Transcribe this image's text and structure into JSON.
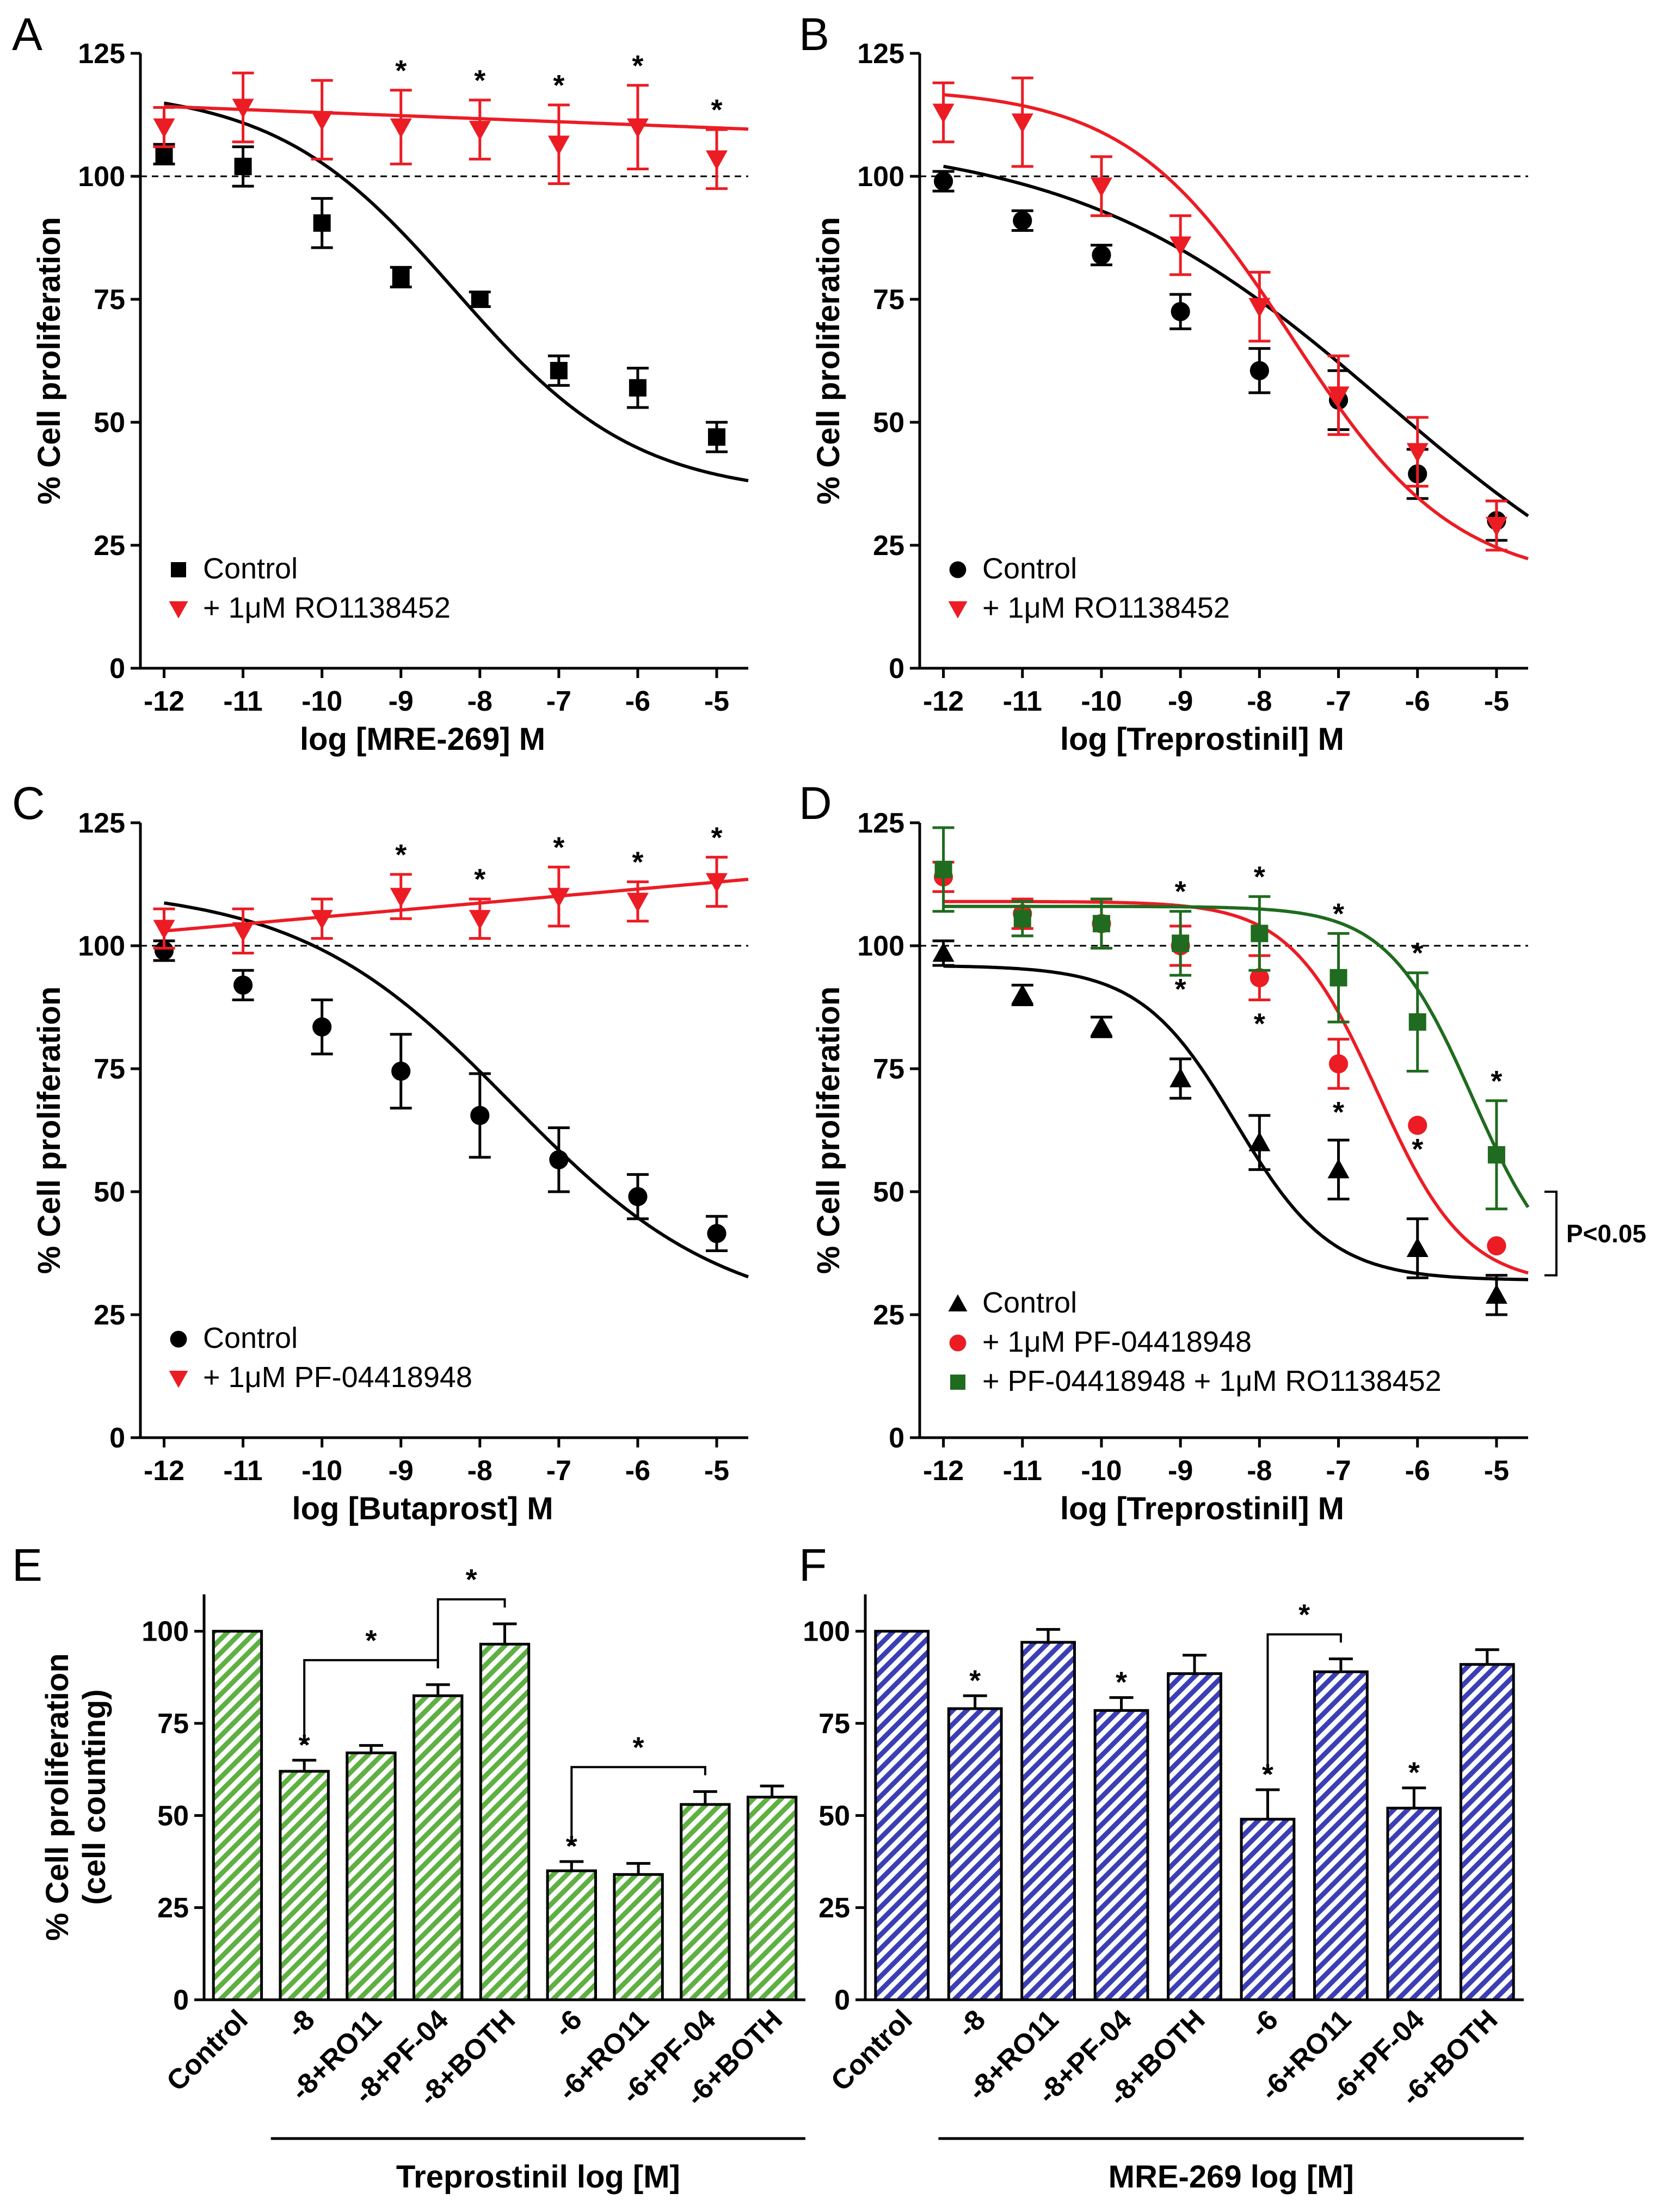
{
  "figure": {
    "description_free": true
  },
  "colors": {
    "black": "#000000",
    "red": "#ec1c24",
    "green": "#1f6b1f",
    "bar_green": "#5fb042",
    "bar_blue": "#3b3fb5"
  },
  "chart_data": [
    {
      "panel": "A",
      "type": "line",
      "xlabel": "log [MRE-269] M",
      "ylabel": "% Cell proliferation",
      "ylim": [
        0,
        125
      ],
      "yticks": [
        0,
        25,
        50,
        75,
        100,
        125
      ],
      "xlim": [
        -12.3,
        -4.6
      ],
      "xticks": [
        -12,
        -11,
        -10,
        -9,
        -8,
        -7,
        -6,
        -5
      ],
      "reference_line": 100,
      "series": [
        {
          "name": "Control",
          "color": "#000000",
          "marker": "square",
          "x": [
            -12,
            -11,
            -10,
            -9,
            -8,
            -7,
            -6,
            -5
          ],
          "y": [
            104.5,
            102,
            90.5,
            79.5,
            75,
            60.5,
            57,
            47
          ],
          "err": [
            2,
            4,
            5,
            2,
            1.5,
            3,
            4,
            3
          ],
          "fit": {
            "top": 118,
            "bottom": 35,
            "logec50": -8.3,
            "hill": 0.38
          }
        },
        {
          "name": "+ 1μM RO1138452",
          "color": "#ec1c24",
          "marker": "triangle-down",
          "x": [
            -12,
            -11,
            -10,
            -9,
            -8,
            -7,
            -6,
            -5
          ],
          "y": [
            110,
            114,
            111.5,
            110,
            109.5,
            106.5,
            110,
            103.5
          ],
          "err": [
            4,
            7,
            8,
            7.5,
            6,
            8,
            8.5,
            6
          ],
          "fit": {
            "linear": [
              114.2,
              109.6
            ]
          },
          "stars": [
            -9,
            -8,
            -7,
            -6,
            -5
          ]
        }
      ],
      "legend": [
        "Control",
        "+ 1μM RO1138452"
      ]
    },
    {
      "panel": "B",
      "type": "line",
      "xlabel": "log [Treprostinil] M",
      "ylabel": "% Cell proliferation",
      "ylim": [
        0,
        125
      ],
      "yticks": [
        0,
        25,
        50,
        75,
        100,
        125
      ],
      "xlim": [
        -12.3,
        -4.6
      ],
      "xticks": [
        -12,
        -11,
        -10,
        -9,
        -8,
        -7,
        -6,
        -5
      ],
      "reference_line": 100,
      "series": [
        {
          "name": "Control",
          "color": "#000000",
          "marker": "circle",
          "x": [
            -12,
            -11,
            -10,
            -9,
            -8,
            -7,
            -6,
            -5
          ],
          "y": [
            99,
            91,
            84,
            72.5,
            60.5,
            54.5,
            39.5,
            30
          ],
          "err": [
            2,
            2,
            2,
            3.5,
            4.5,
            6,
            5,
            4
          ],
          "fit": {
            "top": 108,
            "bottom": 0,
            "logec50": -6.4,
            "hill": 0.22
          }
        },
        {
          "name": "+ 1μM RO1138452",
          "color": "#ec1c24",
          "marker": "triangle-down",
          "x": [
            -12,
            -11,
            -10,
            -9,
            -8,
            -7,
            -6,
            -5
          ],
          "y": [
            113,
            111,
            98,
            86,
            73.5,
            55.5,
            44,
            29
          ],
          "err": [
            6,
            9,
            6,
            6,
            7,
            8,
            7,
            5
          ],
          "fit": {
            "top": 118,
            "bottom": 17,
            "logec50": -7.6,
            "hill": 0.42
          }
        }
      ],
      "legend": [
        "Control",
        "+ 1μM RO1138452"
      ]
    },
    {
      "panel": "C",
      "type": "line",
      "xlabel": "log [Butaprost] M",
      "ylabel": "% Cell proliferation",
      "ylim": [
        0,
        125
      ],
      "yticks": [
        0,
        25,
        50,
        75,
        100,
        125
      ],
      "xlim": [
        -12.3,
        -4.6
      ],
      "xticks": [
        -12,
        -11,
        -10,
        -9,
        -8,
        -7,
        -6,
        -5
      ],
      "reference_line": 100,
      "series": [
        {
          "name": "Control",
          "color": "#000000",
          "marker": "circle",
          "x": [
            -12,
            -11,
            -10,
            -9,
            -8,
            -7,
            -6,
            -5
          ],
          "y": [
            99,
            92,
            83.5,
            74.5,
            65.5,
            56.5,
            49,
            41.5
          ],
          "err": [
            2,
            3,
            5.5,
            7.5,
            8.5,
            6.5,
            4.5,
            3.5
          ],
          "fit": {
            "top": 112,
            "bottom": 24,
            "logec50": -7.6,
            "hill": 0.32
          }
        },
        {
          "name": "+ 1μM PF-04418948",
          "color": "#ec1c24",
          "marker": "triangle-down",
          "x": [
            -12,
            -11,
            -10,
            -9,
            -8,
            -7,
            -6,
            -5
          ],
          "y": [
            103.5,
            103,
            105.5,
            110,
            105.5,
            110,
            109,
            113
          ],
          "err": [
            4,
            4.5,
            4,
            4.5,
            4,
            6,
            4,
            5
          ],
          "fit": {
            "linear": [
              103,
              113.5
            ]
          },
          "stars": [
            -9,
            -8,
            -7,
            -6,
            -5
          ]
        }
      ],
      "legend": [
        "Control",
        "+ 1μM PF-04418948"
      ]
    },
    {
      "panel": "D",
      "type": "line",
      "xlabel": "log [Treprostinil] M",
      "ylabel": "% Cell proliferation",
      "ylim": [
        0,
        125
      ],
      "yticks": [
        0,
        25,
        50,
        75,
        100,
        125
      ],
      "xlim": [
        -12.3,
        -4.6
      ],
      "xticks": [
        -12,
        -11,
        -10,
        -9,
        -8,
        -7,
        -6,
        -5
      ],
      "reference_line": 100,
      "annotation": "P<0.05",
      "series": [
        {
          "name": "Control",
          "color": "#000000",
          "marker": "triangle-up",
          "x": [
            -12,
            -11,
            -10,
            -9,
            -8,
            -7,
            -6,
            -5
          ],
          "y": [
            98.5,
            90,
            83.5,
            73,
            60,
            54.5,
            38.5,
            29
          ],
          "err": [
            2.5,
            2,
            2,
            4,
            5.5,
            6,
            6,
            4
          ],
          "fit": {
            "top": 96,
            "bottom": 32,
            "logec50": -8.3,
            "hill": 0.72
          }
        },
        {
          "name": "+ 1μM PF-04418948",
          "color": "#ec1c24",
          "marker": "circle",
          "x": [
            -12,
            -11,
            -10,
            -9,
            -8,
            -7,
            -6,
            -5
          ],
          "y": [
            114,
            106.5,
            104.5,
            100,
            93.5,
            76,
            63.5,
            39
          ],
          "err": [
            3,
            3,
            5,
            4,
            4.5,
            5,
            0,
            0
          ],
          "fit": {
            "top": 109,
            "bottom": 31,
            "logec50": -6.5,
            "hill": 0.78
          },
          "stars": [
            -9,
            -8,
            -7,
            -6
          ]
        },
        {
          "name": "+ PF-04418948 + 1μM RO1138452",
          "color": "#1f6b1f",
          "marker": "square",
          "x": [
            -12,
            -11,
            -10,
            -9,
            -8,
            -7,
            -6,
            -5
          ],
          "y": [
            115.5,
            105.5,
            104.5,
            100.5,
            102.5,
            93.5,
            84.5,
            57.5
          ],
          "err": [
            8.5,
            3.5,
            5,
            6.5,
            7.5,
            9,
            10,
            11
          ],
          "fit": {
            "top": 108,
            "bottom": 30,
            "logec50": -5.3,
            "hill": 0.8
          },
          "stars": [
            -9,
            -8,
            -7,
            -6,
            -5
          ]
        }
      ],
      "legend": [
        "Control",
        "+ 1μM PF-04418948",
        "+ PF-04418948 + 1μM RO1138452"
      ]
    },
    {
      "panel": "E",
      "type": "bar",
      "ylabel_lines": [
        "% Cell proliferation",
        "(cell counting)"
      ],
      "ylim": [
        0,
        110
      ],
      "yticks": [
        0,
        25,
        50,
        75,
        100
      ],
      "color": "#5fb042",
      "categories": [
        "Control",
        "-8",
        "-8+RO11",
        "-8+PF-04",
        "-8+BOTH",
        "-6",
        "-6+RO11",
        "-6+PF-04",
        "-6+BOTH"
      ],
      "values": [
        100,
        62,
        67,
        82.5,
        96.5,
        35,
        34,
        53,
        55
      ],
      "err": [
        0,
        3,
        2,
        3,
        5.5,
        2.5,
        3,
        3.5,
        3
      ],
      "stars": [
        1,
        5
      ],
      "brackets": [
        {
          "from": 1,
          "to": 3,
          "label": "*"
        },
        {
          "from": 3,
          "to": 4,
          "label": "*"
        },
        {
          "from": 5,
          "to": 7,
          "label": "*"
        }
      ],
      "group_label": "Treprostinil log [M]"
    },
    {
      "panel": "F",
      "type": "bar",
      "ylim": [
        0,
        110
      ],
      "yticks": [
        0,
        25,
        50,
        75,
        100
      ],
      "color": "#3b3fb5",
      "categories": [
        "Control",
        "-8",
        "-8+RO11",
        "-8+PF-04",
        "-8+BOTH",
        "-6",
        "-6+RO11",
        "-6+PF-04",
        "-6+BOTH"
      ],
      "values": [
        100,
        79,
        97,
        78.5,
        88.5,
        49,
        89,
        52,
        91
      ],
      "err": [
        0,
        3.5,
        3.5,
        3.5,
        5,
        8,
        3.5,
        5.5,
        4
      ],
      "stars": [
        1,
        3,
        5,
        7
      ],
      "brackets": [
        {
          "from": 5,
          "to": 6,
          "label": "*"
        }
      ],
      "group_label": "MRE-269 log [M]"
    }
  ]
}
